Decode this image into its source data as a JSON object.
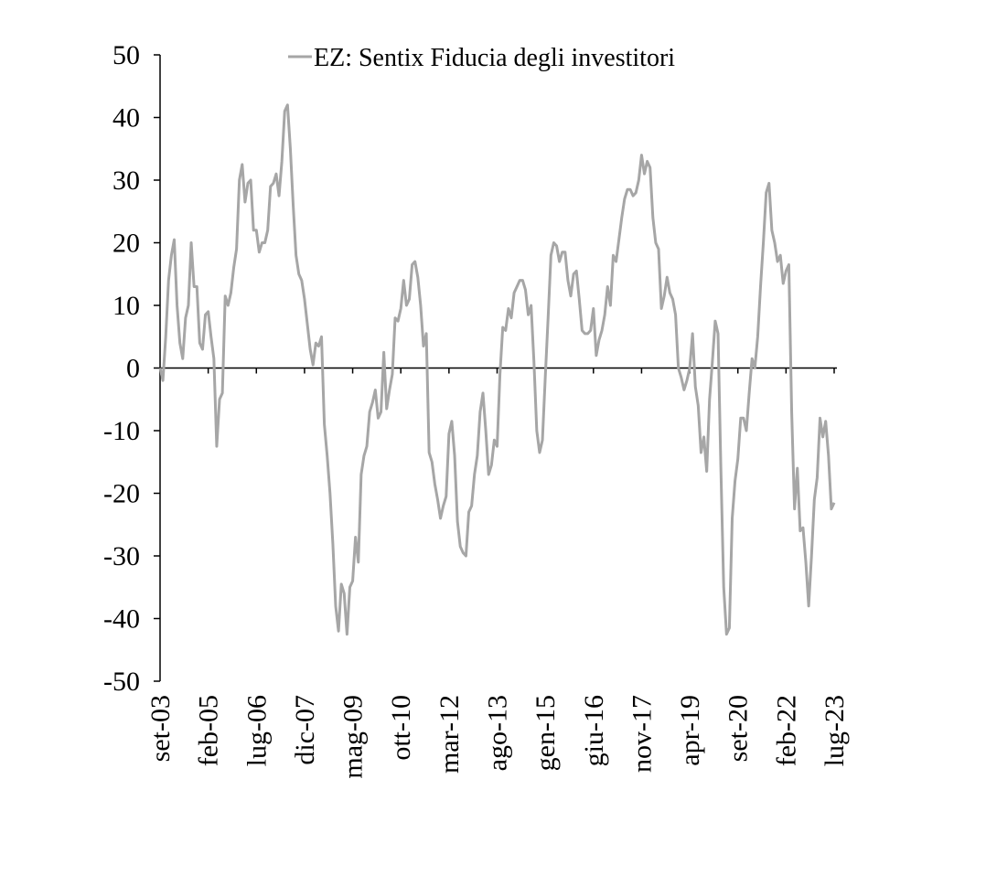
{
  "chart_data": {
    "type": "line",
    "categories": [
      "set-03",
      null,
      null,
      null,
      null,
      null,
      null,
      null,
      null,
      null,
      null,
      null,
      null,
      null,
      null,
      null,
      null,
      "feb-05",
      null,
      null,
      null,
      null,
      null,
      null,
      null,
      null,
      null,
      null,
      null,
      null,
      null,
      null,
      null,
      null,
      "lug-06",
      null,
      null,
      null,
      null,
      null,
      null,
      null,
      null,
      null,
      null,
      null,
      null,
      null,
      null,
      null,
      null,
      "dic-07",
      null,
      null,
      null,
      null,
      null,
      null,
      null,
      null,
      null,
      null,
      null,
      null,
      null,
      null,
      null,
      null,
      "mag-09",
      null,
      null,
      null,
      null,
      null,
      null,
      null,
      null,
      null,
      null,
      null,
      null,
      null,
      null,
      null,
      null,
      "ott-10",
      null,
      null,
      null,
      null,
      null,
      null,
      null,
      null,
      null,
      null,
      null,
      null,
      null,
      null,
      null,
      null,
      "mar-12",
      null,
      null,
      null,
      null,
      null,
      null,
      null,
      null,
      null,
      null,
      null,
      null,
      null,
      null,
      null,
      null,
      "ago-13",
      null,
      null,
      null,
      null,
      null,
      null,
      null,
      null,
      null,
      null,
      null,
      null,
      null,
      null,
      null,
      null,
      "gen-15",
      null,
      null,
      null,
      null,
      null,
      null,
      null,
      null,
      null,
      null,
      null,
      null,
      null,
      null,
      null,
      null,
      "giu-16",
      null,
      null,
      null,
      null,
      null,
      null,
      null,
      null,
      null,
      null,
      null,
      null,
      null,
      null,
      null,
      null,
      "nov-17",
      null,
      null,
      null,
      null,
      null,
      null,
      null,
      null,
      null,
      null,
      null,
      null,
      null,
      null,
      null,
      null,
      "apr-19",
      null,
      null,
      null,
      null,
      null,
      null,
      null,
      null,
      null,
      null,
      null,
      null,
      null,
      null,
      null,
      null,
      "set-20",
      null,
      null,
      null,
      null,
      null,
      null,
      null,
      null,
      null,
      null,
      null,
      null,
      null,
      null,
      null,
      null,
      "feb-22",
      null,
      null,
      null,
      null,
      null,
      null,
      null,
      null,
      null,
      null,
      null,
      null,
      null,
      null,
      null,
      null,
      "lug-23"
    ],
    "series": [
      {
        "name": "EZ: Sentix Fiducia degli investitori",
        "color": "#a6a6a6",
        "values": [
          0,
          -2,
          5,
          14,
          18,
          20.5,
          10,
          4,
          1.5,
          8,
          10,
          20,
          13,
          13,
          4,
          3,
          8.5,
          9,
          5,
          1.5,
          -12.5,
          -5,
          -4,
          11.5,
          10,
          12,
          16,
          19,
          30,
          32.5,
          26.5,
          29.5,
          30,
          22,
          22,
          18.5,
          20,
          20,
          22,
          29,
          29.5,
          31,
          27.5,
          33,
          41,
          42,
          35,
          26,
          18,
          15,
          14,
          11,
          7,
          3,
          0.5,
          4,
          3.5,
          5,
          -9,
          -14,
          -20,
          -28,
          -38,
          -42,
          -34.5,
          -36,
          -42.5,
          -35,
          -34,
          -27,
          -31,
          -17,
          -14,
          -12.5,
          -7,
          -5.5,
          -3.5,
          -8,
          -7,
          2.5,
          -6.5,
          -3.5,
          -1,
          8,
          7.5,
          9.5,
          14,
          10,
          11,
          16.5,
          17,
          14.5,
          10,
          3.5,
          5.5,
          -13.5,
          -15,
          -18.5,
          -21,
          -24,
          -22,
          -20.5,
          -10.5,
          -8.5,
          -14,
          -24.5,
          -28.5,
          -29.5,
          -30,
          -23,
          -22,
          -17,
          -14,
          -7,
          -4,
          -10,
          -17,
          -15.5,
          -11.5,
          -12.5,
          -1,
          6.5,
          6,
          9.5,
          8,
          12,
          13,
          14,
          14,
          12.5,
          8.5,
          10,
          1,
          -10,
          -13.5,
          -11.5,
          -1.5,
          8,
          18,
          20,
          19.5,
          17,
          18.5,
          18.5,
          14,
          11.5,
          15,
          15.5,
          11,
          6,
          5.5,
          5.5,
          6,
          9.5,
          2,
          4.5,
          6,
          8.5,
          13,
          10,
          18,
          17,
          20.5,
          24,
          27,
          28.5,
          28.5,
          27.5,
          28,
          30,
          34,
          31,
          33,
          32,
          24,
          20,
          19,
          9.5,
          11.5,
          14.5,
          12,
          11,
          8.5,
          0,
          -1.5,
          -3.5,
          -2,
          0,
          5.5,
          -3,
          -6,
          -13.5,
          -11,
          -16.5,
          -5,
          1,
          7.5,
          5.5,
          -16,
          -35,
          -42.5,
          -41.5,
          -24,
          -18,
          -14.5,
          -8,
          -8,
          -10,
          -4,
          1.5,
          0,
          5,
          13,
          20,
          28,
          29.5,
          22,
          20,
          17,
          18,
          13.5,
          15.5,
          16.5,
          -7,
          -22.5,
          -16,
          -26,
          -25.5,
          -31,
          -38,
          -30,
          -21,
          -17.5,
          -8,
          -11,
          -8.5,
          -14,
          -22.5,
          -21.5
        ]
      }
    ],
    "ylim": [
      -50,
      50
    ],
    "yticks": [
      -50,
      -40,
      -30,
      -20,
      -10,
      0,
      10,
      20,
      30,
      40,
      50
    ],
    "legend": "top"
  }
}
